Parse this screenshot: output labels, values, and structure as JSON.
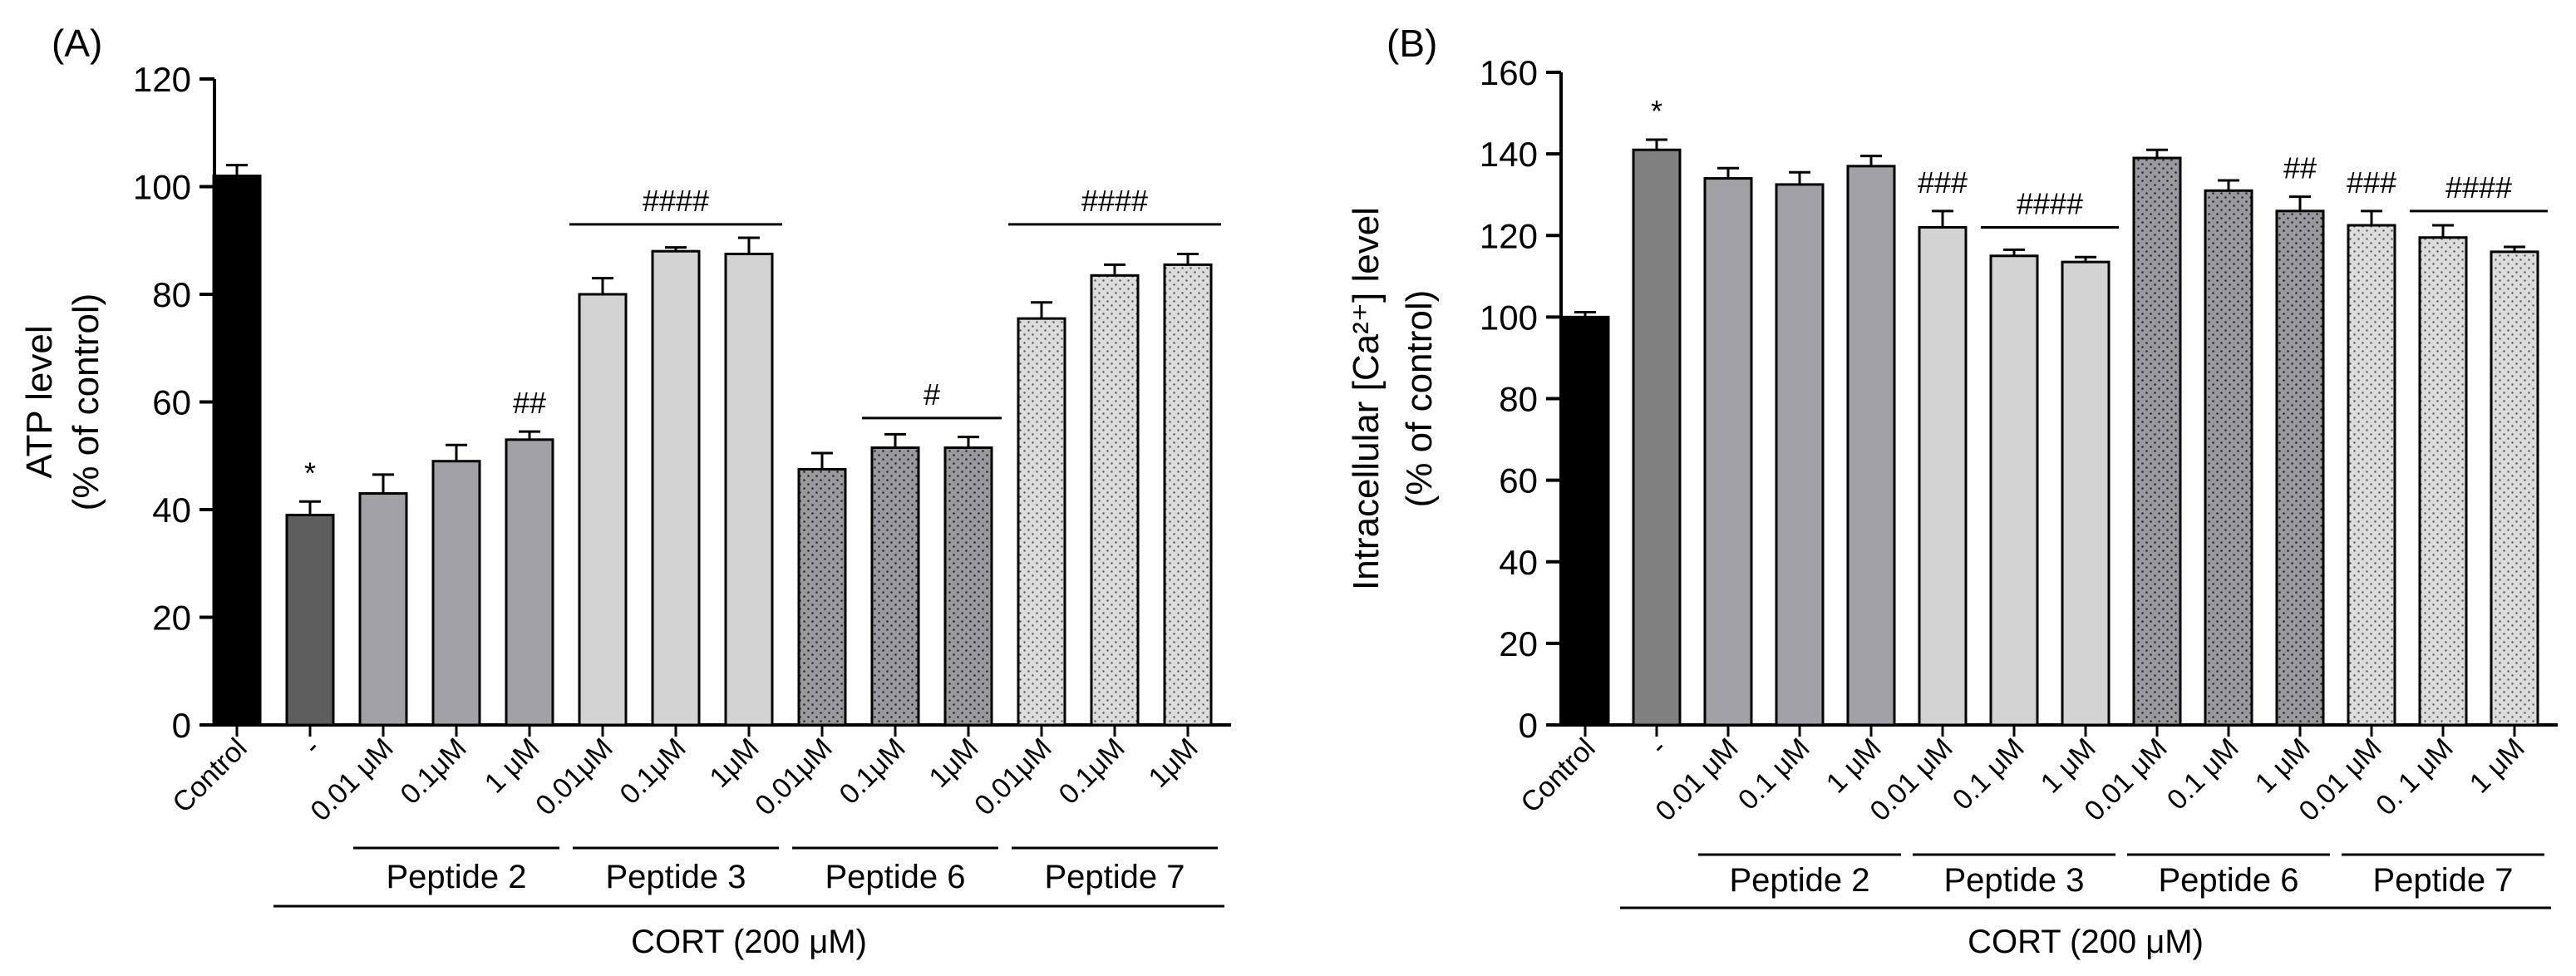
{
  "chart_data": [
    {
      "panel": "(A)",
      "type": "bar",
      "ylabel": "ATP level",
      "ylabel2": "(% of control)",
      "ylim": [
        0,
        120
      ],
      "yticks": [
        0,
        20,
        40,
        60,
        80,
        100,
        120
      ],
      "categories": [
        "Control",
        "-",
        "0.01 μM",
        "0.1μM",
        "1 μM",
        "0.01μM",
        "0.1μM",
        "1μM",
        "0.01μM",
        "0.1μM",
        "1μM",
        "0.01μM",
        "0.1μM",
        "1μM"
      ],
      "values": [
        102,
        39,
        43,
        49,
        53,
        80,
        88,
        87.5,
        47.5,
        51.5,
        51.5,
        75.5,
        83.5,
        85.5
      ],
      "errors": [
        2,
        2.5,
        3.5,
        3,
        1.5,
        3,
        0.7,
        3,
        3,
        2.5,
        2,
        3,
        2,
        2
      ],
      "fills": [
        "#000000",
        "#5e5e5e",
        "#a2a2a6",
        "#a2a2a6",
        "#a2a2a6",
        "#d3d3d3",
        "#d3d3d3",
        "#d3d3d3",
        "dotdark",
        "dotdark",
        "dotdark",
        "dotlight",
        "dotlight",
        "dotlight"
      ],
      "annotations": [
        {
          "index": 1,
          "text": "*"
        },
        {
          "index": 4,
          "text": "##"
        }
      ],
      "brackets": [
        {
          "from": 5,
          "to": 7,
          "y": 93,
          "text": "####"
        },
        {
          "from": 9,
          "to": 10,
          "y": 57,
          "text": "#"
        },
        {
          "from": 11,
          "to": 13,
          "y": 93,
          "text": "####"
        }
      ],
      "groups": [
        {
          "from": 2,
          "to": 4,
          "label": "Peptide 2"
        },
        {
          "from": 5,
          "to": 7,
          "label": "Peptide 3"
        },
        {
          "from": 8,
          "to": 10,
          "label": "Peptide 6"
        },
        {
          "from": 11,
          "to": 13,
          "label": "Peptide 7"
        }
      ],
      "treatment": {
        "from": 1,
        "to": 13,
        "label": "CORT (200 μM)"
      }
    },
    {
      "panel": "(B)",
      "type": "bar",
      "ylabel": "Intracellular [Ca²⁺] level",
      "ylabel2": "(% of control)",
      "ylim": [
        0,
        160
      ],
      "yticks": [
        0,
        20,
        40,
        60,
        80,
        100,
        120,
        140,
        160
      ],
      "categories": [
        "Control",
        "-",
        "0.01 μM",
        "0.1 μM",
        "1 μM",
        "0.01 μM",
        "0.1 μM",
        "1 μM",
        "0.01 μM",
        "0.1 μM",
        "1 μM",
        "0.01 μM",
        "0. 1 μM",
        "1 μM"
      ],
      "values": [
        100,
        141,
        134,
        132.5,
        137,
        122,
        115,
        113.5,
        139,
        131,
        126,
        122.5,
        119.5,
        116
      ],
      "errors": [
        1.2,
        2.5,
        2.5,
        3,
        2.5,
        4,
        1.5,
        1.2,
        2,
        2.5,
        3.5,
        3.5,
        3,
        1.2
      ],
      "fills": [
        "#000000",
        "#808080",
        "#a2a2a6",
        "#a2a2a6",
        "#a2a2a6",
        "#d3d3d3",
        "#d3d3d3",
        "#d3d3d3",
        "dotdark",
        "dotdark",
        "dotdark",
        "dotlight",
        "dotlight",
        "dotlight"
      ],
      "annotations": [
        {
          "index": 1,
          "text": "*"
        },
        {
          "index": 5,
          "text": "###"
        },
        {
          "index": 10,
          "text": "##"
        },
        {
          "index": 11,
          "text": "###"
        }
      ],
      "brackets": [
        {
          "from": 6,
          "to": 7,
          "y": 122,
          "text": "####"
        },
        {
          "from": 12,
          "to": 13,
          "y": 126,
          "text": "####"
        }
      ],
      "groups": [
        {
          "from": 2,
          "to": 4,
          "label": "Peptide 2"
        },
        {
          "from": 5,
          "to": 7,
          "label": "Peptide 3"
        },
        {
          "from": 8,
          "to": 10,
          "label": "Peptide 6"
        },
        {
          "from": 11,
          "to": 13,
          "label": "Peptide 7"
        }
      ],
      "treatment": {
        "from": 1,
        "to": 13,
        "label": "CORT (200 μM)"
      }
    }
  ]
}
